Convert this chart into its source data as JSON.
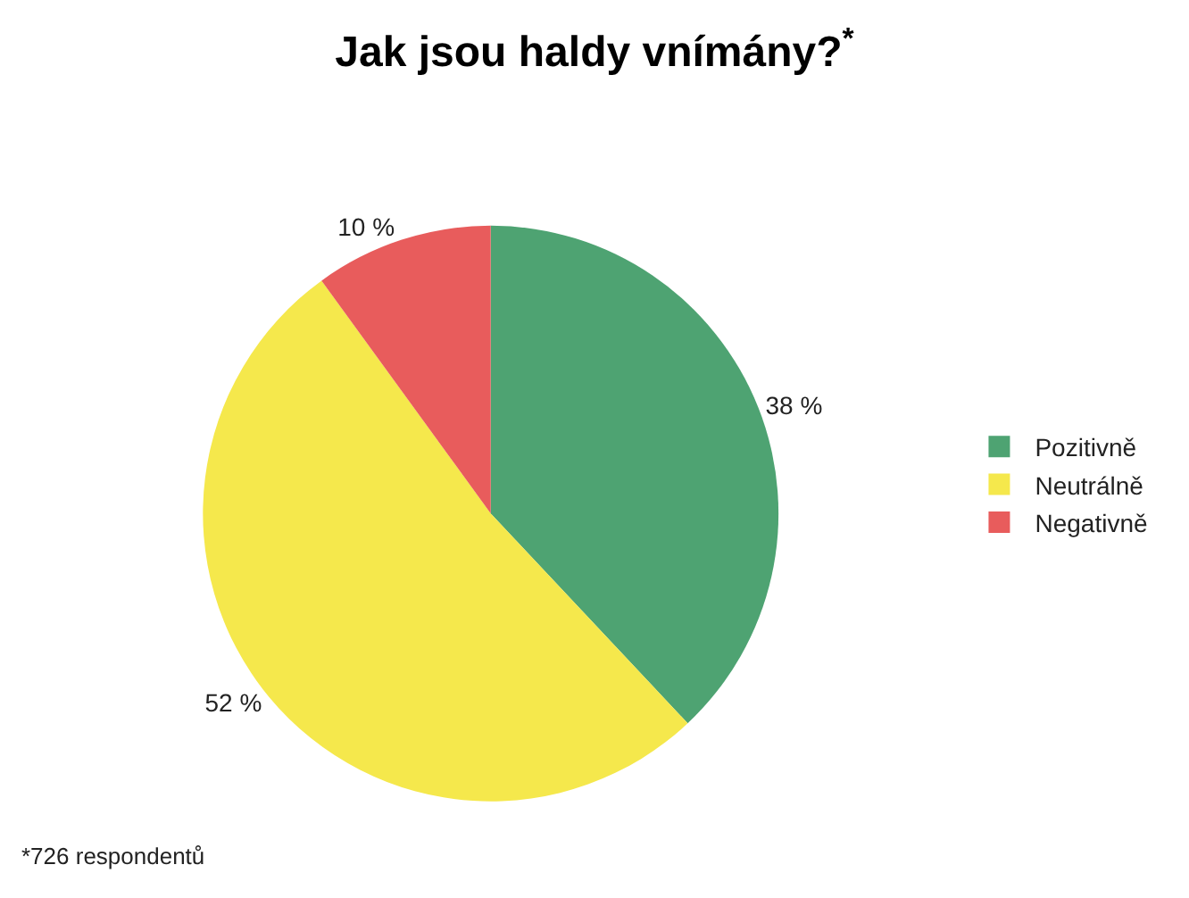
{
  "chart_data": {
    "type": "pie",
    "title": "Jak jsou haldy vnímány?$^{*}$",
    "categories": [
      "Pozitivně",
      "Neutrálně",
      "Negativně"
    ],
    "values": [
      38,
      52,
      10
    ],
    "colors": [
      "#4ea372",
      "#f5e84c",
      "#e85c5c"
    ],
    "value_labels": [
      "38 %",
      "52 %",
      "10 %"
    ],
    "legend": "right",
    "annotations": [
      "*726 respondentů"
    ]
  }
}
